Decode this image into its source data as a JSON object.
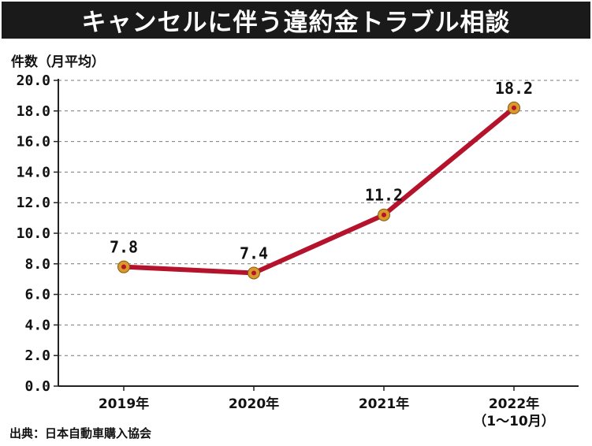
{
  "header": {
    "title": "キャンセルに伴う違約金トラブル相談",
    "unit": "件数（月平均）"
  },
  "footer": {
    "source": "出典：日本自動車購入協会"
  },
  "colors": {
    "line": "#b5122b",
    "marker_ring": "#d9992b",
    "marker_fill": "#b5122b",
    "grid": "#777777",
    "axis": "#222222",
    "title_bg": "#1a1a1a"
  },
  "chart_data": {
    "type": "line",
    "title": "キャンセルに伴う違約金トラブル相談",
    "ylabel": "件数（月平均）",
    "xlabel": "",
    "categories": [
      "2019年",
      "2020年",
      "2021年",
      "2022年"
    ],
    "category_sublabels": [
      "",
      "",
      "",
      "（1〜10月）"
    ],
    "values": [
      7.8,
      7.4,
      11.2,
      18.2
    ],
    "data_labels": [
      "7.8",
      "7.4",
      "11.2",
      "18.2"
    ],
    "ylim": [
      0,
      20
    ],
    "yticks": [
      "0.0",
      "2.0",
      "4.0",
      "6.0",
      "8.0",
      "10.0",
      "12.0",
      "14.0",
      "16.0",
      "18.0",
      "20.0"
    ],
    "grid": true,
    "legend": "none"
  }
}
